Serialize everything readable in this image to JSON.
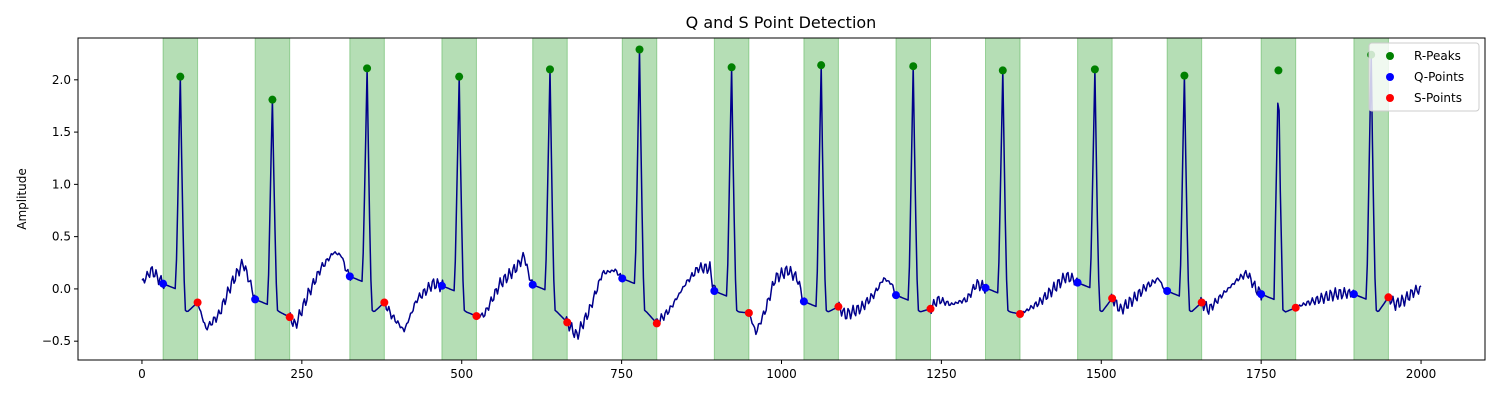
{
  "chart_data": {
    "type": "line",
    "title": "Q and S Point Detection",
    "xlabel": "",
    "ylabel": "Amplitude",
    "xlim": [
      -100,
      2100
    ],
    "ylim": [
      -0.68,
      2.4
    ],
    "xticks": [
      0,
      250,
      500,
      750,
      1000,
      1250,
      1500,
      1750,
      2000
    ],
    "yticks": [
      -0.5,
      0.0,
      0.5,
      1.0,
      1.5,
      2.0
    ],
    "xtick_labels": [
      "0",
      "250",
      "500",
      "750",
      "1000",
      "1250",
      "1500",
      "1750",
      "2000"
    ],
    "ytick_labels": [
      "−0.5",
      "0.0",
      "0.5",
      "1.0",
      "1.5",
      "2.0"
    ],
    "grid": false,
    "legend_position": "top-right",
    "signal_color": "#00008b",
    "qrs_band_color": "#2ca02c",
    "qrs_regions": [
      [
        33,
        87
      ],
      [
        177,
        231
      ],
      [
        325,
        379
      ],
      [
        469,
        523
      ],
      [
        611,
        665
      ],
      [
        751,
        805
      ],
      [
        895,
        949
      ],
      [
        1035,
        1089
      ],
      [
        1179,
        1233
      ],
      [
        1319,
        1373
      ],
      [
        1463,
        1517
      ],
      [
        1603,
        1657
      ],
      [
        1750,
        1804
      ],
      [
        1895,
        1949
      ]
    ],
    "beats": [
      {
        "r": [
          60,
          2.03
        ],
        "q": [
          33,
          0.05
        ],
        "s": [
          87,
          -0.13
        ]
      },
      {
        "r": [
          204,
          1.81
        ],
        "q": [
          177,
          -0.1
        ],
        "s": [
          231,
          -0.27
        ]
      },
      {
        "r": [
          352,
          2.11
        ],
        "q": [
          325,
          0.12
        ],
        "s": [
          379,
          -0.13
        ]
      },
      {
        "r": [
          496,
          2.03
        ],
        "q": [
          469,
          0.03
        ],
        "s": [
          523,
          -0.26
        ]
      },
      {
        "r": [
          638,
          2.1
        ],
        "q": [
          611,
          0.04
        ],
        "s": [
          665,
          -0.32
        ]
      },
      {
        "r": [
          778,
          2.29
        ],
        "q": [
          751,
          0.1
        ],
        "s": [
          805,
          -0.33
        ]
      },
      {
        "r": [
          922,
          2.12
        ],
        "q": [
          895,
          -0.02
        ],
        "s": [
          949,
          -0.23
        ]
      },
      {
        "r": [
          1062,
          2.14
        ],
        "q": [
          1035,
          -0.12
        ],
        "s": [
          1089,
          -0.17
        ]
      },
      {
        "r": [
          1206,
          2.13
        ],
        "q": [
          1179,
          -0.06
        ],
        "s": [
          1233,
          -0.19
        ]
      },
      {
        "r": [
          1346,
          2.09
        ],
        "q": [
          1319,
          0.01
        ],
        "s": [
          1373,
          -0.24
        ]
      },
      {
        "r": [
          1490,
          2.1
        ],
        "q": [
          1463,
          0.06
        ],
        "s": [
          1517,
          -0.09
        ]
      },
      {
        "r": [
          1630,
          2.04
        ],
        "q": [
          1603,
          -0.02
        ],
        "s": [
          1657,
          -0.13
        ]
      },
      {
        "r": [
          1777,
          2.09
        ],
        "q": [
          1750,
          -0.05
        ],
        "s": [
          1804,
          -0.18
        ]
      },
      {
        "r": [
          1922,
          2.24
        ],
        "q": [
          1895,
          -0.05
        ],
        "s": [
          1949,
          -0.08
        ]
      }
    ],
    "baseline": [
      [
        0,
        0.06
      ],
      [
        15,
        0.18
      ],
      [
        40,
        0.06
      ],
      [
        70,
        -0.25
      ],
      [
        100,
        -0.38
      ],
      [
        120,
        -0.25
      ],
      [
        140,
        0.05
      ],
      [
        158,
        0.25
      ],
      [
        168,
        0.08
      ],
      [
        195,
        -0.2
      ],
      [
        215,
        -0.3
      ],
      [
        240,
        -0.35
      ],
      [
        260,
        -0.05
      ],
      [
        280,
        0.2
      ],
      [
        300,
        0.35
      ],
      [
        312,
        0.32
      ],
      [
        318,
        0.2
      ],
      [
        345,
        -0.18
      ],
      [
        365,
        -0.3
      ],
      [
        390,
        -0.25
      ],
      [
        410,
        -0.4
      ],
      [
        430,
        -0.1
      ],
      [
        455,
        0.05
      ],
      [
        486,
        -0.1
      ],
      [
        515,
        -0.3
      ],
      [
        535,
        -0.25
      ],
      [
        560,
        0.05
      ],
      [
        585,
        0.2
      ],
      [
        598,
        0.32
      ],
      [
        604,
        0.15
      ],
      [
        628,
        -0.2
      ],
      [
        660,
        -0.4
      ],
      [
        680,
        -0.45
      ],
      [
        700,
        -0.2
      ],
      [
        720,
        0.15
      ],
      [
        740,
        0.18
      ],
      [
        768,
        -0.1
      ],
      [
        800,
        -0.32
      ],
      [
        825,
        -0.2
      ],
      [
        850,
        0.05
      ],
      [
        870,
        0.2
      ],
      [
        888,
        0.2
      ],
      [
        912,
        -0.1
      ],
      [
        940,
        -0.3
      ],
      [
        960,
        -0.42
      ],
      [
        975,
        -0.2
      ],
      [
        990,
        0.1
      ],
      [
        1010,
        0.18
      ],
      [
        1025,
        0.1
      ],
      [
        1052,
        -0.15
      ],
      [
        1080,
        -0.2
      ],
      [
        1100,
        -0.25
      ],
      [
        1125,
        -0.18
      ],
      [
        1145,
        -0.05
      ],
      [
        1160,
        0.1
      ],
      [
        1172,
        0.05
      ],
      [
        1196,
        -0.12
      ],
      [
        1225,
        -0.18
      ],
      [
        1245,
        -0.1
      ],
      [
        1265,
        -0.15
      ],
      [
        1290,
        -0.1
      ],
      [
        1305,
        0.05
      ],
      [
        1336,
        -0.15
      ],
      [
        1365,
        -0.25
      ],
      [
        1385,
        -0.2
      ],
      [
        1405,
        -0.12
      ],
      [
        1425,
        0.0
      ],
      [
        1445,
        0.12
      ],
      [
        1455,
        0.1
      ],
      [
        1480,
        -0.05
      ],
      [
        1510,
        -0.15
      ],
      [
        1530,
        -0.2
      ],
      [
        1550,
        -0.1
      ],
      [
        1570,
        0.02
      ],
      [
        1590,
        0.1
      ],
      [
        1598,
        0.0
      ],
      [
        1620,
        -0.1
      ],
      [
        1650,
        -0.15
      ],
      [
        1668,
        -0.2
      ],
      [
        1690,
        -0.05
      ],
      [
        1715,
        0.1
      ],
      [
        1728,
        0.15
      ],
      [
        1742,
        0.0
      ],
      [
        1767,
        -0.12
      ],
      [
        1795,
        -0.18
      ],
      [
        1815,
        -0.15
      ],
      [
        1840,
        -0.1
      ],
      [
        1865,
        -0.05
      ],
      [
        1885,
        -0.04
      ],
      [
        1910,
        -0.2
      ],
      [
        1940,
        -0.1
      ],
      [
        1960,
        -0.15
      ],
      [
        1975,
        -0.1
      ],
      [
        1990,
        -0.02
      ],
      [
        2000,
        0.0
      ]
    ],
    "legend": [
      {
        "label": "R-Peaks",
        "color": "#008000"
      },
      {
        "label": "Q-Points",
        "color": "#0000ff"
      },
      {
        "label": "S-Points",
        "color": "#ff0000"
      }
    ]
  }
}
